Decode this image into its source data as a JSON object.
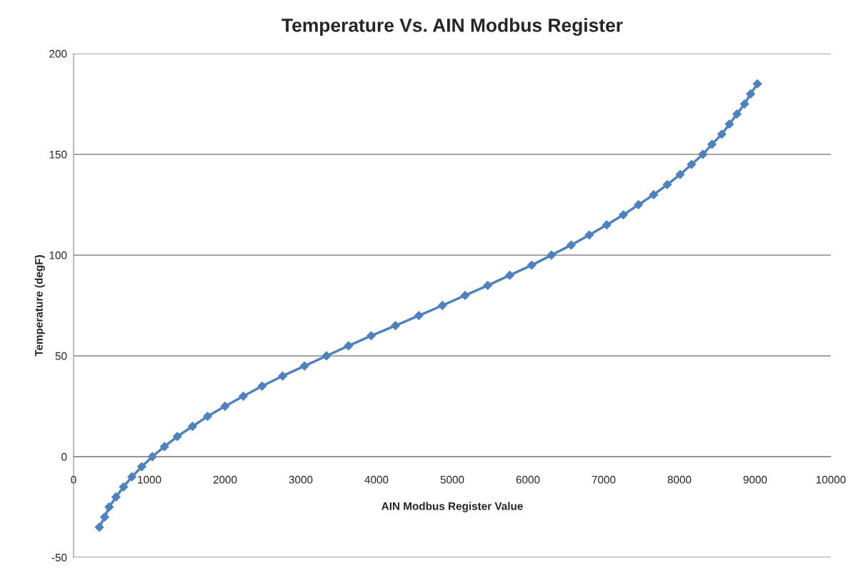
{
  "chart_data": {
    "type": "line",
    "title": "Temperature Vs. AIN Modbus Register",
    "xlabel": "AIN Modbus Register Value",
    "ylabel": "Temperature (degF)",
    "x": [
      340,
      410,
      470,
      560,
      660,
      770,
      900,
      1040,
      1200,
      1370,
      1570,
      1770,
      2000,
      2240,
      2490,
      2760,
      3050,
      3340,
      3630,
      3930,
      4250,
      4560,
      4870,
      5170,
      5470,
      5760,
      6050,
      6310,
      6570,
      6810,
      7040,
      7260,
      7460,
      7660,
      7840,
      8010,
      8160,
      8310,
      8430,
      8560,
      8660,
      8760,
      8860,
      8940,
      9030
    ],
    "series": [
      {
        "color": "#4f81bd",
        "values": [
          -35,
          -30,
          -25,
          -20,
          -15,
          -10,
          -5,
          0,
          5,
          10,
          15,
          20,
          25,
          30,
          35,
          40,
          45,
          50,
          55,
          60,
          65,
          70,
          75,
          80,
          85,
          90,
          95,
          100,
          105,
          110,
          115,
          120,
          125,
          130,
          135,
          140,
          145,
          150,
          155,
          160,
          165,
          170,
          175,
          180,
          185
        ]
      }
    ],
    "xlim": [
      0,
      10000
    ],
    "xticks": [
      0,
      1000,
      2000,
      3000,
      4000,
      5000,
      6000,
      7000,
      8000,
      9000,
      10000
    ],
    "ylim": [
      -50,
      200
    ],
    "yticks": [
      -50,
      0,
      50,
      100,
      150,
      200
    ],
    "grid": "y",
    "marker": "diamond",
    "line_style": "solid"
  }
}
